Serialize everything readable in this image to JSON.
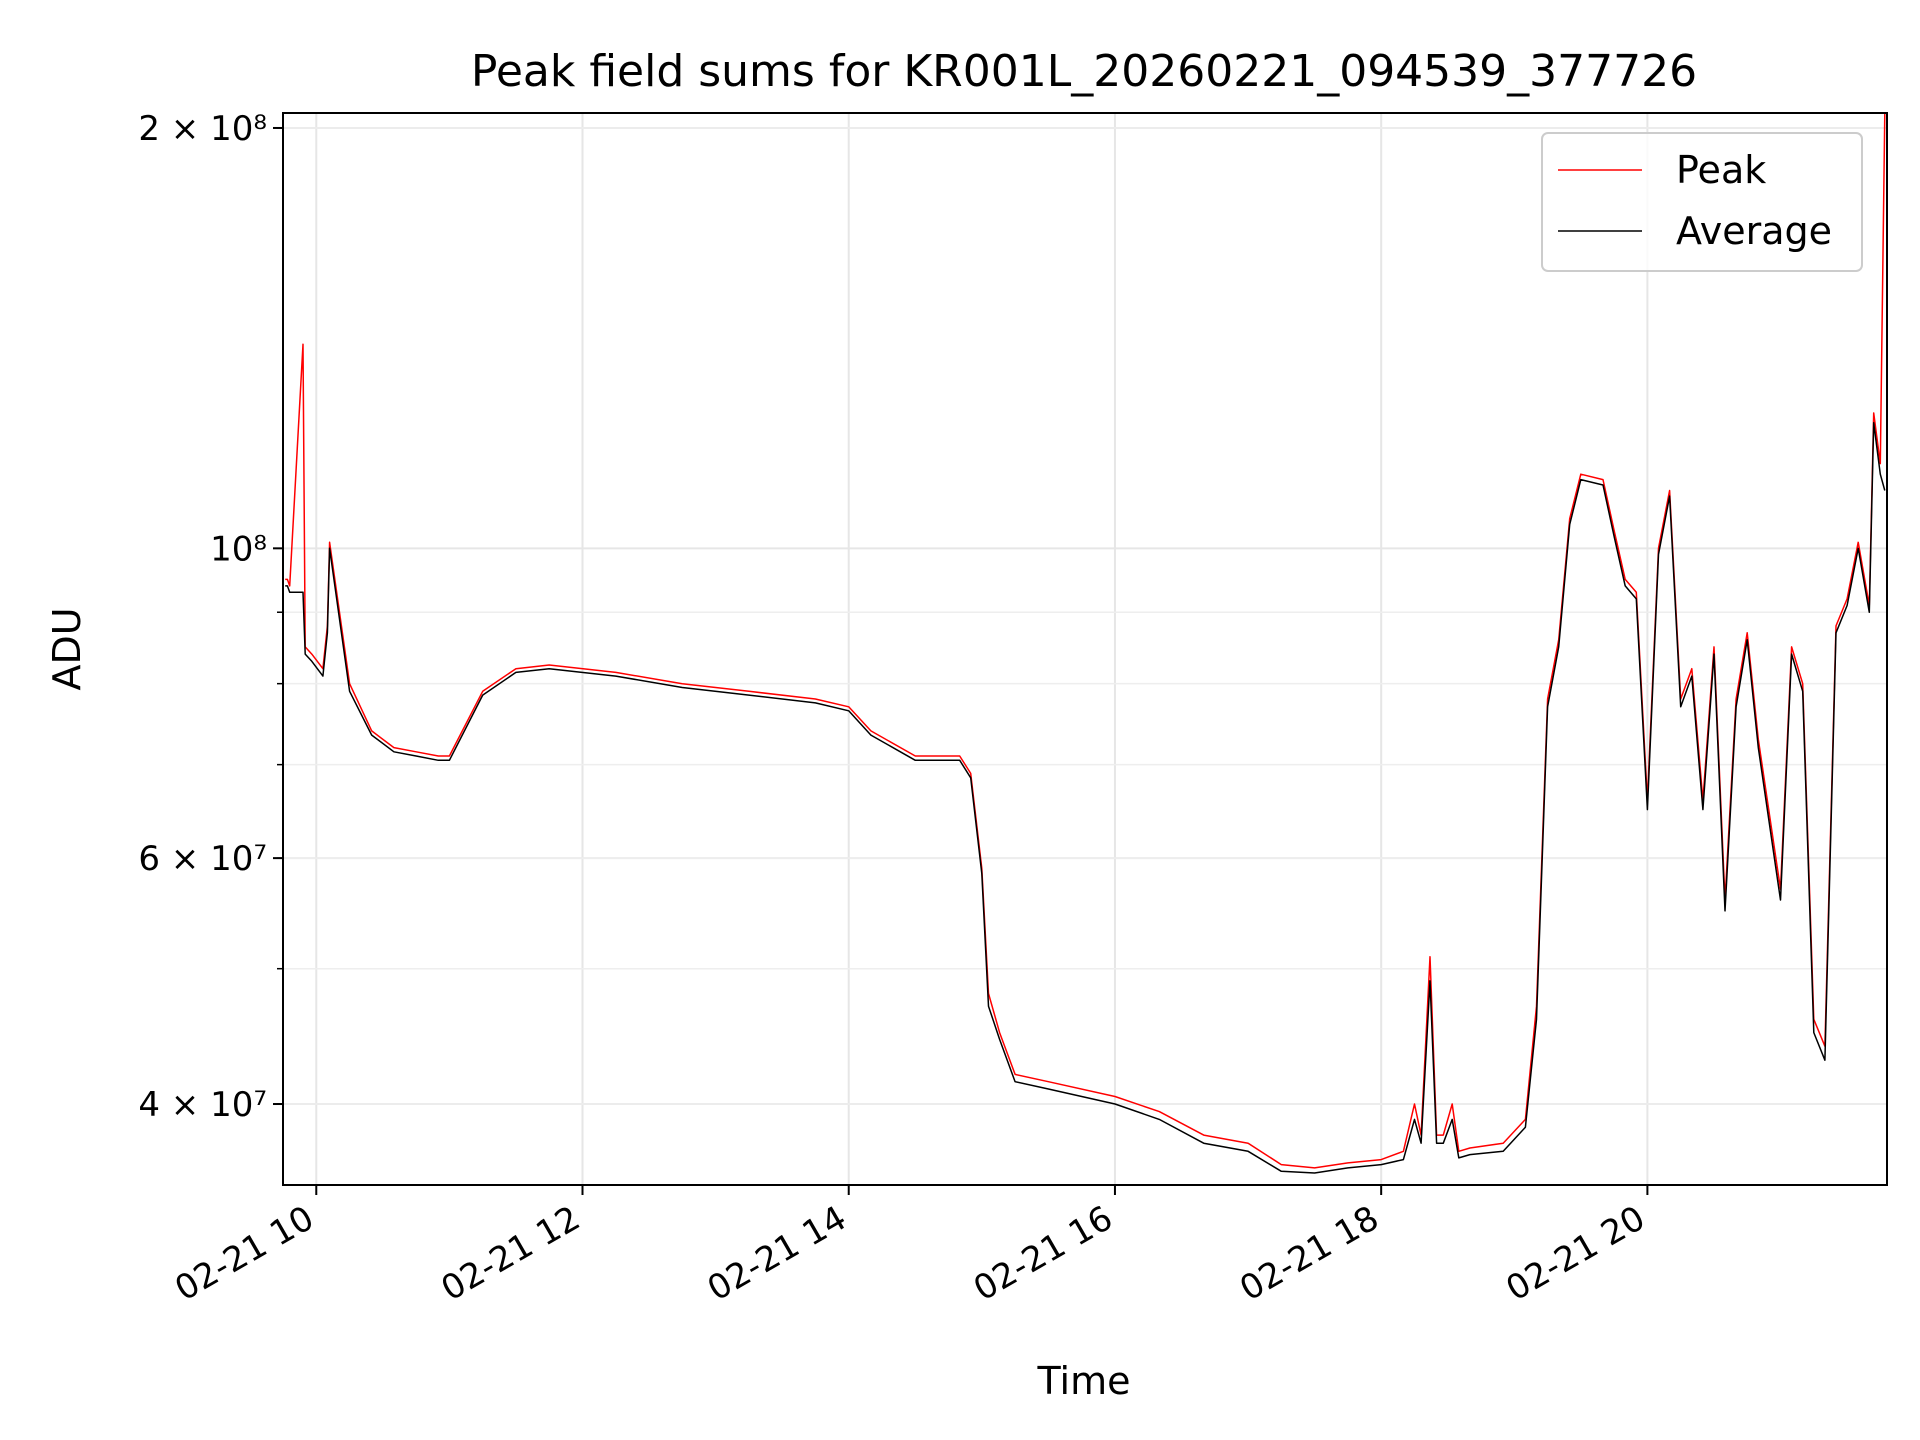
{
  "chart_data": {
    "type": "line",
    "title": "Peak field sums for KR001L_20260221_094539_377726",
    "xlabel": "Time",
    "ylabel": "ADU",
    "x_ticks": [
      "02-21 10",
      "02-21 12",
      "02-21 14",
      "02-21 16",
      "02-21 18",
      "02-21 20"
    ],
    "y_ticks": [
      "4 × 10⁷",
      "6 × 10⁷",
      "10⁸",
      "2 × 10⁸"
    ],
    "xlim": [
      "2026-02-21 09:45",
      "2026-02-21 21:48"
    ],
    "ylim": [
      35000000,
      205000000
    ],
    "y_scale": "log",
    "grid": true,
    "legend_position": "top-right",
    "colors": {
      "Peak": "#ff0000",
      "Average": "#000000"
    },
    "x": [
      "2026-02-21 09:46",
      "2026-02-21 09:47",
      "2026-02-21 09:48",
      "2026-02-21 09:54",
      "2026-02-21 09:55",
      "2026-02-21 09:58",
      "2026-02-21 10:03",
      "2026-02-21 10:05",
      "2026-02-21 10:06",
      "2026-02-21 10:15",
      "2026-02-21 10:25",
      "2026-02-21 10:35",
      "2026-02-21 10:45",
      "2026-02-21 10:55",
      "2026-02-21 11:00",
      "2026-02-21 11:15",
      "2026-02-21 11:30",
      "2026-02-21 11:45",
      "2026-02-21 12:15",
      "2026-02-21 12:45",
      "2026-02-21 13:15",
      "2026-02-21 13:45",
      "2026-02-21 14:00",
      "2026-02-21 14:10",
      "2026-02-21 14:30",
      "2026-02-21 14:50",
      "2026-02-21 14:55",
      "2026-02-21 15:00",
      "2026-02-21 15:03",
      "2026-02-21 15:08",
      "2026-02-21 15:15",
      "2026-02-21 15:30",
      "2026-02-21 16:00",
      "2026-02-21 16:20",
      "2026-02-21 16:40",
      "2026-02-21 17:00",
      "2026-02-21 17:15",
      "2026-02-21 17:30",
      "2026-02-21 17:45",
      "2026-02-21 18:00",
      "2026-02-21 18:10",
      "2026-02-21 18:15",
      "2026-02-21 18:18",
      "2026-02-21 18:22",
      "2026-02-21 18:25",
      "2026-02-21 18:28",
      "2026-02-21 18:32",
      "2026-02-21 18:35",
      "2026-02-21 18:40",
      "2026-02-21 18:55",
      "2026-02-21 19:05",
      "2026-02-21 19:10",
      "2026-02-21 19:15",
      "2026-02-21 19:20",
      "2026-02-21 19:25",
      "2026-02-21 19:30",
      "2026-02-21 19:40",
      "2026-02-21 19:45",
      "2026-02-21 19:50",
      "2026-02-21 19:55",
      "2026-02-21 20:00",
      "2026-02-21 20:05",
      "2026-02-21 20:10",
      "2026-02-21 20:15",
      "2026-02-21 20:20",
      "2026-02-21 20:25",
      "2026-02-21 20:30",
      "2026-02-21 20:35",
      "2026-02-21 20:40",
      "2026-02-21 20:45",
      "2026-02-21 20:50",
      "2026-02-21 21:00",
      "2026-02-21 21:05",
      "2026-02-21 21:10",
      "2026-02-21 21:15",
      "2026-02-21 21:20",
      "2026-02-21 21:25",
      "2026-02-21 21:30",
      "2026-02-21 21:35",
      "2026-02-21 21:40",
      "2026-02-21 21:42",
      "2026-02-21 21:45",
      "2026-02-21 21:47"
    ],
    "series": [
      {
        "name": "Peak",
        "values": [
          95000000,
          95000000,
          94000000,
          140000000,
          85000000,
          84000000,
          82000000,
          88000000,
          101000000,
          80000000,
          74000000,
          72000000,
          71500000,
          71000000,
          71000000,
          79000000,
          82000000,
          82500000,
          81500000,
          80000000,
          79000000,
          78000000,
          77000000,
          74000000,
          71000000,
          71000000,
          69000000,
          59000000,
          48000000,
          45000000,
          42000000,
          41500000,
          40500000,
          39500000,
          38000000,
          37500000,
          36200000,
          36000000,
          36300000,
          36500000,
          37000000,
          40000000,
          38000000,
          51000000,
          38000000,
          38000000,
          40000000,
          37000000,
          37200000,
          37500000,
          39000000,
          47000000,
          78000000,
          86000000,
          105000000,
          113000000,
          112000000,
          103000000,
          95000000,
          93000000,
          66000000,
          100000000,
          110000000,
          78000000,
          82000000,
          66000000,
          85000000,
          56000000,
          78000000,
          87000000,
          73000000,
          57000000,
          85000000,
          80000000,
          46000000,
          44000000,
          88000000,
          92000000,
          101000000,
          91000000,
          125000000,
          115000000,
          205000000
        ]
      },
      {
        "name": "Average",
        "values": [
          94000000,
          94000000,
          93000000,
          93000000,
          84000000,
          83000000,
          81000000,
          87000000,
          100000000,
          79000000,
          73500000,
          71500000,
          71000000,
          70500000,
          70500000,
          78500000,
          81500000,
          82000000,
          81000000,
          79500000,
          78500000,
          77500000,
          76500000,
          73500000,
          70500000,
          70500000,
          68500000,
          58500000,
          47000000,
          44500000,
          41500000,
          41000000,
          40000000,
          39000000,
          37500000,
          37000000,
          35800000,
          35700000,
          36000000,
          36200000,
          36500000,
          39000000,
          37500000,
          49000000,
          37500000,
          37500000,
          39000000,
          36600000,
          36800000,
          37000000,
          38500000,
          46000000,
          77000000,
          85000000,
          104000000,
          112000000,
          111000000,
          102000000,
          94000000,
          92000000,
          65000000,
          99000000,
          109000000,
          77000000,
          81000000,
          65000000,
          84000000,
          55000000,
          77000000,
          86000000,
          72000000,
          56000000,
          84000000,
          79000000,
          45000000,
          43000000,
          87000000,
          91000000,
          100000000,
          90000000,
          123000000,
          113000000,
          110000000
        ]
      }
    ]
  }
}
